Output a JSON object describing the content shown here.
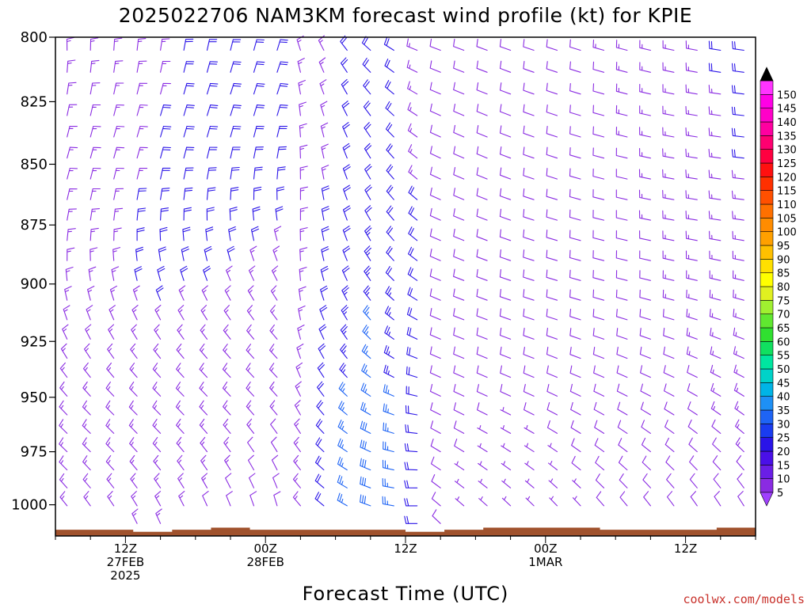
{
  "chart_data": {
    "type": "wind-barb-time-height",
    "title": "2025022706 NAM3KM forecast wind profile (kt) for KPIE",
    "xlabel": "Forecast Time (UTC)",
    "ylabel": "",
    "yscale": "log-pressure",
    "ylim": [
      1015,
      800
    ],
    "xlim_hours": [
      6,
      66
    ],
    "y_ticks": [
      {
        "value": 800,
        "label": "800"
      },
      {
        "value": 825,
        "label": "825"
      },
      {
        "value": 850,
        "label": "850"
      },
      {
        "value": 875,
        "label": "875"
      },
      {
        "value": 900,
        "label": "900"
      },
      {
        "value": 925,
        "label": "925"
      },
      {
        "value": 950,
        "label": "950"
      },
      {
        "value": 975,
        "label": "975"
      },
      {
        "value": 1000,
        "label": "1000"
      }
    ],
    "x_ticks": [
      {
        "hour": 12,
        "lines": [
          "12Z",
          "27FEB",
          "2025"
        ]
      },
      {
        "hour": 24,
        "lines": [
          "00Z",
          "28FEB"
        ]
      },
      {
        "hour": 36,
        "lines": [
          "12Z"
        ]
      },
      {
        "hour": 48,
        "lines": [
          "00Z",
          "1MAR"
        ]
      },
      {
        "hour": 60,
        "lines": [
          "12Z"
        ]
      }
    ],
    "colorbar": {
      "levels": [
        5,
        10,
        15,
        20,
        25,
        30,
        35,
        40,
        45,
        50,
        55,
        60,
        65,
        70,
        75,
        80,
        85,
        90,
        95,
        100,
        105,
        110,
        115,
        120,
        125,
        130,
        135,
        140,
        145,
        150
      ],
      "colors": [
        "#8a2be2",
        "#6a1ee6",
        "#4a10e8",
        "#2a14e8",
        "#1a3cf0",
        "#1e64f5",
        "#1e90f5",
        "#00b4e6",
        "#00d2c8",
        "#00e6a0",
        "#10e060",
        "#30e030",
        "#60e830",
        "#a0f030",
        "#e0f020",
        "#ffff00",
        "#ffe000",
        "#ffc000",
        "#ffa000",
        "#ff8c00",
        "#ff7000",
        "#ff5000",
        "#ff3000",
        "#ff1010",
        "#ff0040",
        "#ff0070",
        "#ff00a0",
        "#ff00c8",
        "#ff00e6",
        "#ff33ff"
      ],
      "over_color": "#000000",
      "under_color": "#a040ff"
    },
    "barb_colors": {
      "weak": "#8a2be2",
      "moderate": "#2a14e8",
      "strong": "#1e64f5"
    },
    "terrain_color": "#a0522d",
    "surface_pressure": [
      1012,
      1012,
      1013,
      1012,
      1011,
      1012,
      1012,
      1012,
      1012,
      1013,
      1012,
      1011,
      1011,
      1011,
      1012,
      1012,
      1012,
      1011
    ]
  },
  "credit": "coolwx.com/models"
}
